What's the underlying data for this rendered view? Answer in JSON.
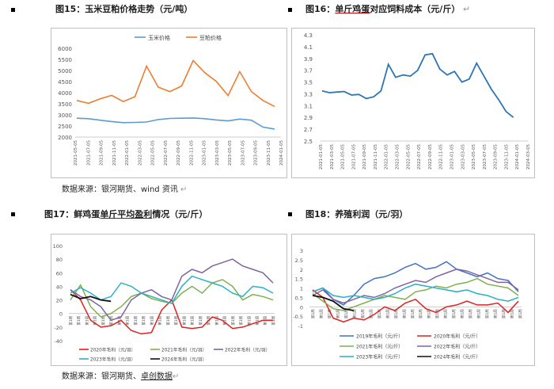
{
  "colors": {
    "blue": "#5b9bd5",
    "orange": "#ed7d31",
    "trend": "#2e75b6",
    "red": "#e02020",
    "green": "#7fb04e",
    "purple": "#8064a2",
    "teal": "#2ab0c4",
    "black": "#111111",
    "navy": "#4472c4"
  },
  "fig15": {
    "title": "图15：玉米豆粕价格走势（元/吨）",
    "chart_data": {
      "type": "line",
      "title": "",
      "legend": [
        "玉米价格",
        "豆粕价格"
      ],
      "y_ticks": [
        "6000",
        "5500",
        "5000",
        "4500",
        "4000",
        "3500",
        "3000",
        "2500",
        "2000"
      ],
      "ylim": [
        2000,
        6000
      ],
      "x_ticks": [
        "2021-05-05",
        "2021-07-05",
        "2021-09-05",
        "2021-11-05",
        "2022-01-05",
        "2022-03-05",
        "2022-05-05",
        "2022-07-05",
        "2022-09-05",
        "2022-11-05",
        "2023-01-05",
        "2023-03-05",
        "2023-05-05",
        "2023-07-05",
        "2023-09-05",
        "2023-11-05",
        "2024-01-05"
      ],
      "series": [
        {
          "name": "玉米价格",
          "values": [
            2850,
            2830,
            2760,
            2700,
            2650,
            2660,
            2680,
            2790,
            2840,
            2850,
            2860,
            2830,
            2770,
            2730,
            2810,
            2760,
            2450,
            2360
          ]
        },
        {
          "name": "豆粕价格",
          "values": [
            3650,
            3520,
            3720,
            3880,
            3600,
            3820,
            5200,
            4250,
            4050,
            4300,
            5450,
            4900,
            4500,
            3870,
            4950,
            4050,
            3650,
            3380
          ]
        }
      ]
    }
  },
  "fig16": {
    "title_parts": {
      "ul": "单斤鸡蛋",
      "rest": "对应饲料成本（元/斤）"
    },
    "chart_data": {
      "type": "line",
      "series": [
        {
          "name": "单斤鸡蛋对应饲料成本",
          "values": [
            3.35,
            3.32,
            3.33,
            3.34,
            3.28,
            3.29,
            3.22,
            3.25,
            3.35,
            3.8,
            3.58,
            3.62,
            3.6,
            3.7,
            3.96,
            3.98,
            3.72,
            3.62,
            3.68,
            3.5,
            3.55,
            3.82,
            3.6,
            3.38,
            3.2,
            3.0,
            2.9
          ]
        }
      ],
      "y_ticks": [
        "4.3",
        "4.1",
        "3.9",
        "3.7",
        "3.5",
        "3.3",
        "3.1",
        "2.9",
        "2.7",
        "2.5"
      ],
      "ylim": [
        2.5,
        4.3
      ],
      "x_ticks": [
        "2021-01-05",
        "2021-03-05",
        "2021-05-05",
        "2021-07-05",
        "2021-09-05",
        "2021-11-05",
        "2022-01-05",
        "2022-03-05",
        "2022-05-05",
        "2022-07-05",
        "2022-09-05",
        "2022-11-05",
        "2023-01-05",
        "2023-03-05",
        "2023-05-05",
        "2023-07-05",
        "2023-09-05",
        "2023-11-05",
        "2024-01-05",
        "2024-03-05"
      ]
    }
  },
  "source_top": {
    "text": "数据来源：银河期货、wind 资讯",
    "mark": "↵"
  },
  "fig17": {
    "title_parts": {
      "pre": "图17：鲜鸡蛋",
      "ul": "单斤平均盈利",
      "rest": "情况（元/斤）"
    },
    "chart_data": {
      "type": "line",
      "y_ticks": [
        "100",
        "80",
        "60",
        "40",
        "20",
        "0",
        "-20",
        "-40"
      ],
      "ylim": [
        -40,
        100
      ],
      "x_label": "第1周",
      "series": [
        {
          "name": "2020年毛利（元/羽）",
          "values": [
            35,
            20,
            -10,
            -20,
            -18,
            -10,
            -25,
            -30,
            -28,
            5,
            20,
            -20,
            -22,
            -20,
            -5,
            -10,
            -22,
            -20,
            -15,
            -10,
            -10
          ]
        },
        {
          "name": "2021年毛利（元/羽）",
          "values": [
            20,
            42,
            10,
            -5,
            0,
            10,
            25,
            30,
            22,
            18,
            15,
            30,
            40,
            30,
            45,
            50,
            40,
            20,
            28,
            25,
            20
          ]
        },
        {
          "name": "2022年毛利（元/羽）",
          "values": [
            35,
            25,
            20,
            10,
            -10,
            -5,
            20,
            30,
            35,
            25,
            20,
            55,
            65,
            60,
            70,
            75,
            80,
            70,
            65,
            60,
            45
          ]
        },
        {
          "name": "2023年毛利（元/羽）",
          "values": [
            30,
            38,
            30,
            20,
            25,
            45,
            40,
            30,
            25,
            20,
            15,
            40,
            55,
            50,
            45,
            40,
            30,
            25,
            40,
            38,
            30
          ]
        },
        {
          "name": "2024年毛利（元/羽）",
          "values": [
            28,
            22,
            25,
            20,
            18
          ]
        }
      ]
    }
  },
  "fig18": {
    "title": "图18：养殖利润（元/羽）",
    "chart_data": {
      "type": "line",
      "y_ticks": [
        "3",
        "2.5",
        "2",
        "1.5",
        "1",
        "0.5",
        "0",
        "-0.5",
        "-1"
      ],
      "ylim": [
        -1,
        3
      ],
      "x_label": "第1周",
      "series": [
        {
          "name": "2019年毛利（元/斤）",
          "values": [
            0.8,
            1.0,
            0.4,
            0.1,
            0.6,
            1.2,
            1.5,
            1.6,
            1.8,
            2.1,
            2.3,
            2.0,
            2.1,
            2.4,
            2.0,
            1.8,
            1.6,
            1.8,
            1.5,
            1.4,
            0.8
          ]
        },
        {
          "name": "2020年毛利（元/斤）",
          "values": [
            0.9,
            0.5,
            -0.6,
            -0.8,
            -0.6,
            -0.7,
            -0.4,
            0.0,
            -0.2,
            0.2,
            0.4,
            -0.1,
            -0.3,
            0.0,
            0.1,
            0.3,
            0.1,
            0.1,
            0.2,
            -0.3,
            0.3
          ]
        },
        {
          "name": "2021年毛利（元/斤）",
          "values": [
            0.7,
            0.3,
            -0.1,
            -0.2,
            0.0,
            0.2,
            0.4,
            0.6,
            0.5,
            0.4,
            0.8,
            0.9,
            1.1,
            1.0,
            1.2,
            1.3,
            1.5,
            1.2,
            1.1,
            1.0,
            0.6
          ]
        },
        {
          "name": "2022年毛利（元/斤）",
          "values": [
            0.6,
            0.9,
            0.4,
            0.2,
            0.4,
            0.6,
            0.5,
            0.7,
            1.0,
            1.2,
            1.4,
            1.3,
            1.6,
            1.8,
            2.0,
            1.9,
            1.7,
            1.5,
            1.3,
            1.3,
            0.9
          ]
        },
        {
          "name": "2023年毛利（元/斤）",
          "values": [
            0.8,
            1.0,
            0.6,
            0.5,
            0.6,
            0.5,
            0.4,
            0.5,
            0.7,
            1.0,
            1.2,
            1.1,
            1.0,
            0.9,
            0.8,
            0.9,
            0.7,
            0.6,
            0.4,
            0.3,
            0.5
          ]
        },
        {
          "name": "2024年毛利（元/斤）",
          "values": [
            0.6,
            0.5,
            0.3,
            -0.1,
            -0.2
          ]
        }
      ]
    }
  },
  "source_bottom": {
    "pre": "数据来源：银河期货、",
    "ul": "卓创数据",
    "mark": "↵"
  }
}
